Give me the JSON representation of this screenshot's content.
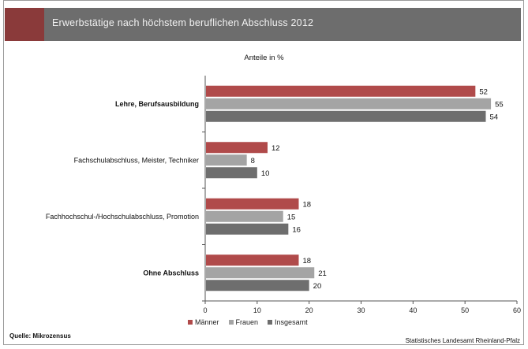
{
  "header": {
    "title": "Erwerbstätige nach höchstem beruflichen Abschluss 2012",
    "subtitle": "Anteile in %"
  },
  "chart_data": {
    "type": "bar",
    "orientation": "horizontal",
    "categories": [
      "Lehre, Berufsausbildung",
      "Fachschulabschluss, Meister, Techniker",
      "Fachhochschul-/Hochschulabschluss, Promotion",
      "Ohne Abschluss"
    ],
    "series": [
      {
        "name": "Männer",
        "color": "#b04a4a",
        "values": [
          52,
          12,
          18,
          18
        ]
      },
      {
        "name": "Frauen",
        "color": "#a4a4a4",
        "values": [
          55,
          8,
          15,
          21
        ]
      },
      {
        "name": "Insgesamt",
        "color": "#6e6e6e",
        "values": [
          54,
          10,
          16,
          20
        ]
      }
    ],
    "xlim": [
      0,
      60
    ],
    "xticks": [
      0,
      10,
      20,
      30,
      40,
      50,
      60
    ],
    "grid": false,
    "legend_position": "bottom"
  },
  "footer": {
    "source": "Quelle: Mikrozensus",
    "publisher": "Statistisches Landesamt Rheinland-Pfalz"
  }
}
